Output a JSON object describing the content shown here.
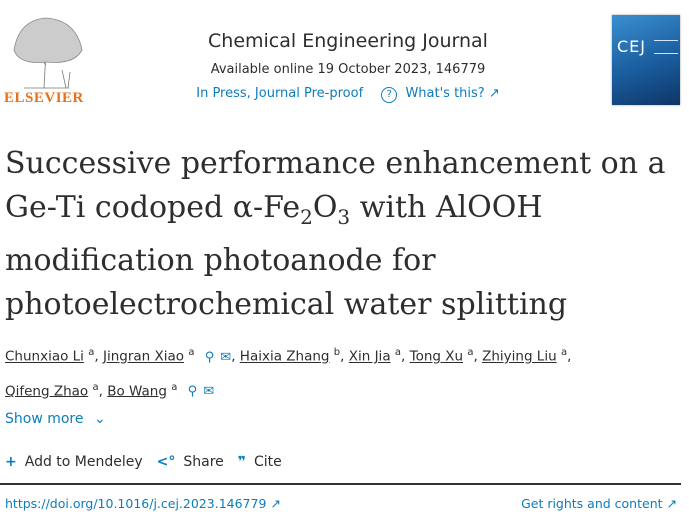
{
  "publisher": {
    "logo_text": "ELSEVIER"
  },
  "journal": {
    "name": "Chemical Engineering Journal",
    "available": "Available online 19 October 2023, 146779",
    "status_link": "In Press, Journal Pre-proof",
    "whats_this": "What's this?",
    "cover_text": "CEJ"
  },
  "article": {
    "title_lines": [
      "Successive performance enhancement on a",
      "Ge-Ti codoped α-Fe",
      "modification photoanode for",
      "photoelectrochemical water splitting"
    ],
    "title_sub1": "2",
    "title_mid": "O",
    "title_sub2": "3",
    "title_end": " with AlOOH",
    "authors": [
      {
        "name": "Chunxiao Li",
        "aff": "a"
      },
      {
        "name": "Jingran Xiao",
        "aff": "a"
      },
      {
        "name": "Haixia Zhang",
        "aff": "b"
      },
      {
        "name": "Xin Jia",
        "aff": "a"
      },
      {
        "name": "Tong Xu",
        "aff": "a"
      },
      {
        "name": "Zhiying Liu",
        "aff": "a"
      },
      {
        "name": "Qifeng Zhao",
        "aff": "a"
      },
      {
        "name": "Bo Wang",
        "aff": "a"
      }
    ],
    "show_more": "Show more"
  },
  "toolbar": {
    "mendeley": "Add to Mendeley",
    "share": "Share",
    "cite": "Cite"
  },
  "footer": {
    "doi": "https://doi.org/10.1016/j.cej.2023.146779",
    "rights": "Get rights and content"
  },
  "colors": {
    "link": "#0c7dbb",
    "elsevier_orange": "#e9711c"
  }
}
